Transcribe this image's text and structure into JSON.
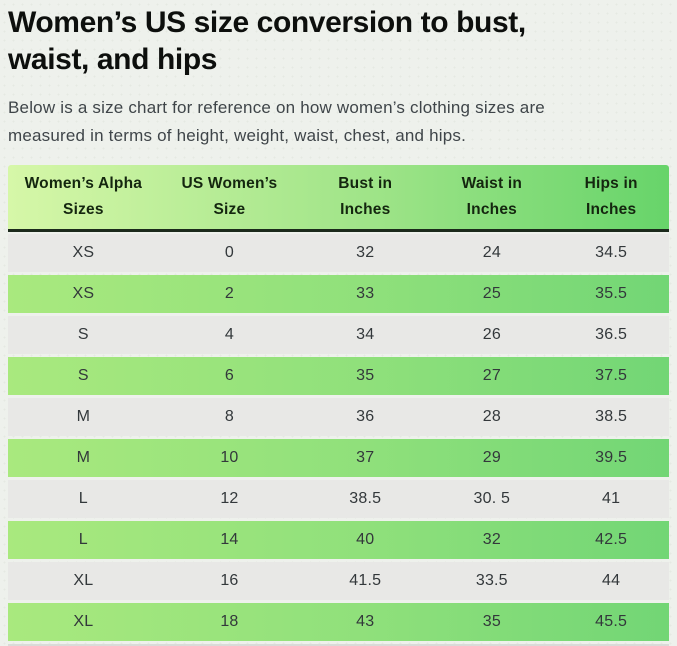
{
  "header": {
    "title_line1": "Women’s US size conversion to bust,",
    "title_line2": "waist, and hips"
  },
  "intro": {
    "line1": "Below is a size chart for reference on how women’s clothing sizes are",
    "line2": "measured in terms of height, weight, waist, chest, and hips."
  },
  "colors": {
    "page_background": "#eef1ec",
    "header_gradient_left": "#d6f7a8",
    "header_gradient_right": "#67d46a",
    "green_row_gradient_left": "#a9e97e",
    "green_row_gradient_right": "#72d675",
    "gray_row": "#e8e8e6",
    "header_divider": "#1c2a1c",
    "heading_text": "#0d0f0d",
    "body_text": "#3f4549",
    "cell_text": "#33383b"
  },
  "table": {
    "columns": [
      {
        "line1": "Women’s Alpha",
        "line2": "Sizes"
      },
      {
        "line1": "US Women’s",
        "line2": "Size"
      },
      {
        "line1": "Bust in",
        "line2": "Inches"
      },
      {
        "line1": "Waist in",
        "line2": "Inches"
      },
      {
        "line1": "Hips in",
        "line2": "Inches"
      }
    ],
    "rows": [
      {
        "alpha": "XS",
        "us": "0",
        "bust": "32",
        "waist": "24",
        "hips": "34.5",
        "variant": "gray"
      },
      {
        "alpha": "XS",
        "us": "2",
        "bust": "33",
        "waist": "25",
        "hips": "35.5",
        "variant": "green"
      },
      {
        "alpha": "S",
        "us": "4",
        "bust": "34",
        "waist": "26",
        "hips": "36.5",
        "variant": "gray"
      },
      {
        "alpha": "S",
        "us": "6",
        "bust": "35",
        "waist": "27",
        "hips": "37.5",
        "variant": "green"
      },
      {
        "alpha": "M",
        "us": "8",
        "bust": "36",
        "waist": "28",
        "hips": "38.5",
        "variant": "gray"
      },
      {
        "alpha": "M",
        "us": "10",
        "bust": "37",
        "waist": "29",
        "hips": "39.5",
        "variant": "green"
      },
      {
        "alpha": "L",
        "us": "12",
        "bust": "38.5",
        "waist": "30. 5",
        "hips": "41",
        "variant": "gray"
      },
      {
        "alpha": "L",
        "us": "14",
        "bust": "40",
        "waist": "32",
        "hips": "42.5",
        "variant": "green"
      },
      {
        "alpha": "XL",
        "us": "16",
        "bust": "41.5",
        "waist": "33.5",
        "hips": "44",
        "variant": "gray"
      },
      {
        "alpha": "XL",
        "us": "18",
        "bust": "43",
        "waist": "35",
        "hips": "45.5",
        "variant": "green"
      }
    ]
  }
}
